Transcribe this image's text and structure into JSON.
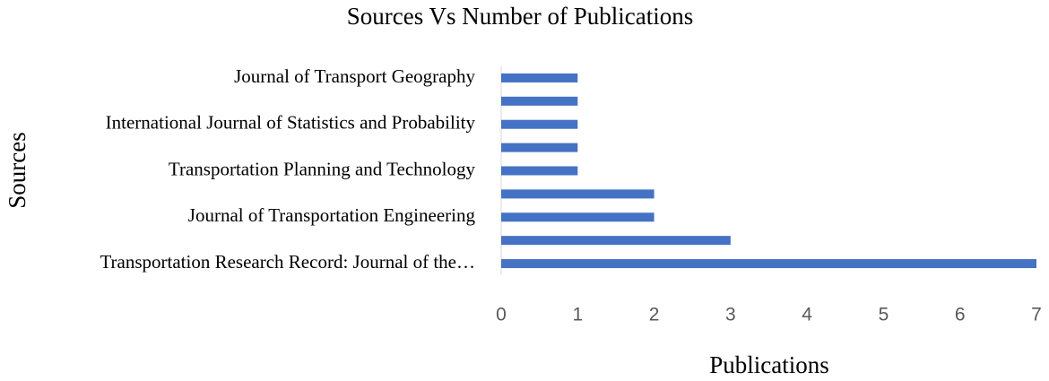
{
  "chart_data": {
    "type": "bar",
    "orientation": "horizontal",
    "title": "Sources Vs Number of Publications",
    "x_label": "Publications",
    "y_label": "Sources",
    "categories": [
      "Transportation Research Record: Journal of the…",
      null,
      "Journal of Transportation Engineering",
      null,
      "Transportation Planning and Technology",
      null,
      "International Journal of Statistics and Probability",
      null,
      "Journal of Transport Geography"
    ],
    "values": [
      7,
      3,
      2,
      2,
      1,
      1,
      1,
      1,
      1
    ],
    "color": "#4472c4",
    "xlim": [
      0,
      7
    ],
    "xticks": [
      0,
      1,
      2,
      3,
      4,
      5,
      6,
      7
    ],
    "grid": false
  }
}
